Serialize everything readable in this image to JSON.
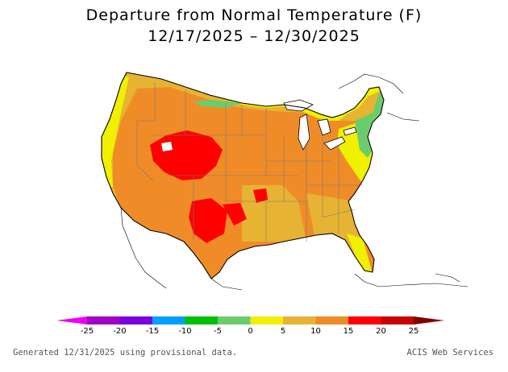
{
  "title": "Departure from Normal Temperature (F)",
  "subtitle": "12/17/2025 – 12/30/2025",
  "legend": {
    "ticks": [
      "-25",
      "-20",
      "-15",
      "-10",
      "-5",
      "0",
      "5",
      "10",
      "15",
      "20",
      "25"
    ],
    "colors": [
      "#f000f0",
      "#a000c8",
      "#7800dc",
      "#00a0ff",
      "#00c000",
      "#6ccc6c",
      "#f0f000",
      "#e6b432",
      "#f08c28",
      "#ff0000",
      "#c80000",
      "#800000"
    ]
  },
  "map_colors": {
    "outline": "#000000",
    "state_lines": "#777777",
    "warm_5_10": "#e6b432",
    "warm_10_15": "#f08c28",
    "warm_15_20": "#ff0000",
    "near_0_5": "#f0f000",
    "cool_minus5_0": "#6ccc6c",
    "white_hole": "#ffffff"
  },
  "footer": {
    "left": "Generated 12/31/2025 using provisional data.",
    "right": "ACIS Web Services"
  }
}
